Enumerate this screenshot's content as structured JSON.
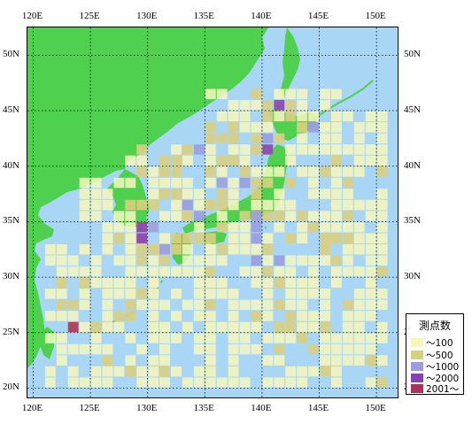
{
  "map": {
    "lon_min": 119.5,
    "lon_max": 152,
    "lat_min": 19,
    "lat_max": 52.5,
    "lon_ticks": [
      "120E",
      "125E",
      "130E",
      "135E",
      "140E",
      "145E",
      "150E"
    ],
    "lat_ticks": [
      "50N",
      "45N",
      "40N",
      "35N",
      "30N",
      "25N",
      "20N"
    ],
    "colors": {
      "ocean": "#a9d6f5",
      "land": "#4fd04f",
      "grid": "#000000"
    }
  },
  "legend": {
    "title": "測点数",
    "items": [
      {
        "label": "～100",
        "color": "#f7f7bd"
      },
      {
        "label": "～500",
        "color": "#d9cf80"
      },
      {
        "label": "～1000",
        "color": "#9a9de0"
      },
      {
        "label": "～2000",
        "color": "#8a3fb5"
      },
      {
        "label": "2001～",
        "color": "#a8325a"
      }
    ]
  }
}
